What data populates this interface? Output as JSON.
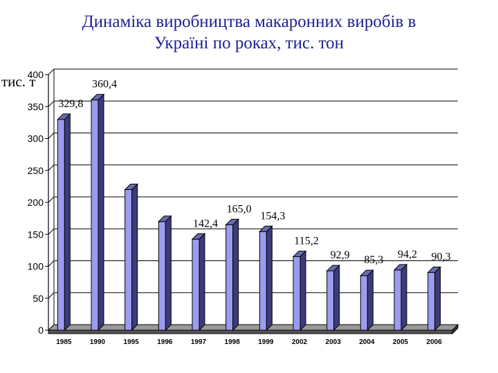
{
  "title_line1": "Динаміка виробництва макаронних виробів в",
  "title_line2": "Україні по роках, тис. тон",
  "unit_label": "тис. т",
  "chart_data": {
    "type": "bar",
    "title": "Динаміка виробництва макаронних виробів в Україні по роках, тис. тон",
    "ylabel": "тис. т",
    "xlabel": "",
    "ylim": [
      0,
      400
    ],
    "yticks": [
      0,
      50,
      100,
      150,
      200,
      250,
      300,
      350,
      400
    ],
    "grid": true,
    "categories": [
      "1985",
      "1990",
      "1995",
      "1996",
      "1997",
      "1998",
      "1999",
      "2002",
      "2003",
      "2004",
      "2005",
      "2006"
    ],
    "values": [
      329.8,
      360.4,
      220,
      170,
      142.4,
      165.0,
      154.3,
      115.2,
      92.9,
      85.3,
      94.2,
      90.3
    ],
    "data_labels": [
      "329,8",
      "360,4",
      "",
      "",
      "142,4",
      "165,0",
      "154,3",
      "115,2",
      "92,9",
      "85,3",
      "94,2",
      "90,3"
    ],
    "colors": {
      "bar_front": "#9b9bf0",
      "bar_side": "#3c3c7a",
      "bar_top": "#6a6ab0",
      "grid": "#000000"
    }
  }
}
